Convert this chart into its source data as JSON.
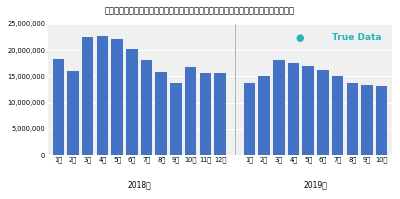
{
  "title": "ドラッグストアのインバウンド消費購買金額の推移",
  "subtitle": "１店舗あたりの売上金額（円）",
  "bar_color": "#4472c4",
  "background_color": "#ffffff",
  "plot_bg_color": "#f0f0f0",
  "ylim": [
    0,
    25000000
  ],
  "yticks": [
    0,
    5000000,
    10000000,
    15000000,
    20000000,
    25000000
  ],
  "values_2018": [
    18300000,
    16100000,
    22500000,
    22700000,
    22100000,
    20300000,
    18100000,
    15900000,
    13700000,
    16800000,
    15600000,
    15600000
  ],
  "values_2019": [
    13800000,
    15000000,
    18100000,
    17600000,
    17000000,
    16200000,
    15000000,
    13800000,
    13400000,
    13100000
  ],
  "labels_2018": [
    "1月",
    "2月",
    "3月",
    "4月",
    "5月",
    "6月",
    "7月",
    "8月",
    "9月",
    "10月",
    "11月",
    "12月"
  ],
  "labels_2019": [
    "1月",
    "2月",
    "3月",
    "4月",
    "5月",
    "6月",
    "7月",
    "8月",
    "9月",
    "10月"
  ],
  "year_label_2018": "2018年",
  "year_label_2019": "2019年",
  "logo_text": "True Data",
  "logo_color": "#2ab5b5",
  "sep_color": "#aaaaaa",
  "grid_color": "#ffffff",
  "title_fontsize": 6.0,
  "subtitle_fontsize": 5.5,
  "tick_fontsize": 4.8,
  "year_fontsize": 5.5,
  "logo_fontsize": 6.5
}
